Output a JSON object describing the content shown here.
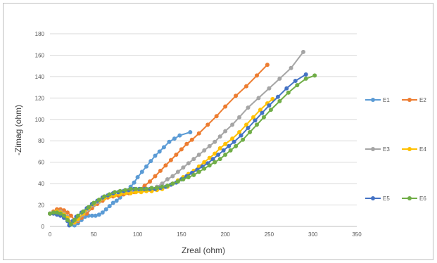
{
  "chart_data": {
    "type": "scatter",
    "title": "",
    "xlabel": "Zreal (ohm)",
    "ylabel": "-Zimag (ohm)",
    "xlim": [
      0,
      350
    ],
    "ylim": [
      0,
      180
    ],
    "xticks": [
      0,
      50,
      100,
      150,
      200,
      250,
      300,
      350
    ],
    "yticks": [
      0,
      20,
      40,
      60,
      80,
      100,
      120,
      140,
      160,
      180
    ],
    "grid": "horizontal",
    "legend": "right",
    "series": [
      {
        "name": "E1",
        "color": "#5B9BD5",
        "points": [
          [
            0,
            12
          ],
          [
            4,
            13
          ],
          [
            8,
            13
          ],
          [
            12,
            12
          ],
          [
            16,
            10
          ],
          [
            20,
            7
          ],
          [
            24,
            3
          ],
          [
            28,
            1
          ],
          [
            32,
            3
          ],
          [
            36,
            6
          ],
          [
            40,
            9
          ],
          [
            44,
            10
          ],
          [
            48,
            10
          ],
          [
            52,
            10
          ],
          [
            56,
            11
          ],
          [
            60,
            13
          ],
          [
            64,
            16
          ],
          [
            68,
            19
          ],
          [
            72,
            22
          ],
          [
            76,
            24
          ],
          [
            80,
            27
          ],
          [
            84,
            30
          ],
          [
            88,
            33
          ],
          [
            92,
            37
          ],
          [
            96,
            41
          ],
          [
            100,
            46
          ],
          [
            105,
            51
          ],
          [
            110,
            56
          ],
          [
            115,
            61
          ],
          [
            120,
            66
          ],
          [
            125,
            70
          ],
          [
            130,
            74
          ],
          [
            136,
            79
          ],
          [
            142,
            82
          ],
          [
            148,
            85
          ],
          [
            160,
            88
          ]
        ]
      },
      {
        "name": "E2",
        "color": "#ED7D31",
        "points": [
          [
            0,
            12
          ],
          [
            4,
            14
          ],
          [
            8,
            16
          ],
          [
            12,
            16
          ],
          [
            16,
            15
          ],
          [
            20,
            13
          ],
          [
            24,
            10
          ],
          [
            28,
            6
          ],
          [
            32,
            5
          ],
          [
            36,
            8
          ],
          [
            42,
            12
          ],
          [
            48,
            17
          ],
          [
            54,
            21
          ],
          [
            60,
            24
          ],
          [
            66,
            27
          ],
          [
            72,
            28
          ],
          [
            78,
            29
          ],
          [
            84,
            30
          ],
          [
            90,
            31
          ],
          [
            96,
            32
          ],
          [
            102,
            34
          ],
          [
            108,
            38
          ],
          [
            114,
            42
          ],
          [
            120,
            47
          ],
          [
            126,
            52
          ],
          [
            132,
            57
          ],
          [
            138,
            62
          ],
          [
            144,
            67
          ],
          [
            150,
            72
          ],
          [
            156,
            77
          ],
          [
            162,
            81
          ],
          [
            170,
            87
          ],
          [
            180,
            95
          ],
          [
            190,
            103
          ],
          [
            200,
            112
          ],
          [
            212,
            122
          ],
          [
            224,
            131
          ],
          [
            236,
            141
          ],
          [
            248,
            151
          ]
        ]
      },
      {
        "name": "E3",
        "color": "#A5A5A5",
        "points": [
          [
            0,
            12
          ],
          [
            4,
            13
          ],
          [
            8,
            14
          ],
          [
            12,
            14
          ],
          [
            16,
            12
          ],
          [
            20,
            9
          ],
          [
            24,
            4
          ],
          [
            28,
            3
          ],
          [
            32,
            6
          ],
          [
            38,
            11
          ],
          [
            44,
            16
          ],
          [
            50,
            20
          ],
          [
            56,
            23
          ],
          [
            62,
            26
          ],
          [
            68,
            28
          ],
          [
            74,
            29
          ],
          [
            80,
            30
          ],
          [
            86,
            31
          ],
          [
            92,
            32
          ],
          [
            98,
            33
          ],
          [
            104,
            33
          ],
          [
            110,
            34
          ],
          [
            116,
            35
          ],
          [
            122,
            37
          ],
          [
            128,
            40
          ],
          [
            134,
            44
          ],
          [
            140,
            47
          ],
          [
            146,
            51
          ],
          [
            152,
            55
          ],
          [
            158,
            59
          ],
          [
            164,
            63
          ],
          [
            170,
            67
          ],
          [
            176,
            71
          ],
          [
            182,
            75
          ],
          [
            188,
            79
          ],
          [
            194,
            84
          ],
          [
            200,
            89
          ],
          [
            208,
            95
          ],
          [
            216,
            102
          ],
          [
            226,
            111
          ],
          [
            238,
            120
          ],
          [
            250,
            129
          ],
          [
            262,
            138
          ],
          [
            275,
            148
          ],
          [
            289,
            163
          ]
        ]
      },
      {
        "name": "E4",
        "color": "#FFC000",
        "points": [
          [
            0,
            12
          ],
          [
            4,
            13
          ],
          [
            8,
            14
          ],
          [
            12,
            13
          ],
          [
            16,
            11
          ],
          [
            20,
            8
          ],
          [
            24,
            3
          ],
          [
            28,
            4
          ],
          [
            32,
            7
          ],
          [
            38,
            12
          ],
          [
            44,
            17
          ],
          [
            50,
            21
          ],
          [
            56,
            24
          ],
          [
            62,
            26
          ],
          [
            68,
            28
          ],
          [
            74,
            29
          ],
          [
            80,
            30
          ],
          [
            86,
            31
          ],
          [
            92,
            31
          ],
          [
            98,
            32
          ],
          [
            104,
            32
          ],
          [
            110,
            33
          ],
          [
            116,
            33
          ],
          [
            122,
            34
          ],
          [
            128,
            35
          ],
          [
            134,
            37
          ],
          [
            140,
            40
          ],
          [
            146,
            43
          ],
          [
            152,
            46
          ],
          [
            158,
            49
          ],
          [
            164,
            52
          ],
          [
            170,
            56
          ],
          [
            176,
            60
          ],
          [
            182,
            64
          ],
          [
            188,
            68
          ],
          [
            194,
            73
          ],
          [
            200,
            77
          ],
          [
            208,
            82
          ],
          [
            216,
            88
          ],
          [
            224,
            95
          ],
          [
            232,
            102
          ],
          [
            240,
            109
          ],
          [
            248,
            115
          ],
          [
            254,
            119
          ]
        ]
      },
      {
        "name": "E5",
        "color": "#4472C4",
        "points": [
          [
            0,
            12
          ],
          [
            4,
            12
          ],
          [
            8,
            11
          ],
          [
            12,
            10
          ],
          [
            16,
            8
          ],
          [
            20,
            5
          ],
          [
            22,
            1
          ],
          [
            26,
            5
          ],
          [
            30,
            9
          ],
          [
            36,
            13
          ],
          [
            42,
            17
          ],
          [
            48,
            21
          ],
          [
            54,
            24
          ],
          [
            60,
            27
          ],
          [
            66,
            29
          ],
          [
            72,
            31
          ],
          [
            78,
            32
          ],
          [
            84,
            33
          ],
          [
            90,
            34
          ],
          [
            96,
            35
          ],
          [
            102,
            35
          ],
          [
            108,
            35
          ],
          [
            114,
            35
          ],
          [
            120,
            35
          ],
          [
            126,
            36
          ],
          [
            132,
            37
          ],
          [
            138,
            39
          ],
          [
            144,
            41
          ],
          [
            150,
            44
          ],
          [
            156,
            47
          ],
          [
            162,
            50
          ],
          [
            168,
            53
          ],
          [
            174,
            56
          ],
          [
            180,
            59
          ],
          [
            186,
            63
          ],
          [
            192,
            67
          ],
          [
            198,
            71
          ],
          [
            204,
            75
          ],
          [
            210,
            79
          ],
          [
            218,
            85
          ],
          [
            226,
            92
          ],
          [
            234,
            99
          ],
          [
            242,
            106
          ],
          [
            250,
            113
          ],
          [
            260,
            121
          ],
          [
            270,
            129
          ],
          [
            280,
            136
          ],
          [
            292,
            142
          ]
        ]
      },
      {
        "name": "E6",
        "color": "#70AD47",
        "points": [
          [
            0,
            12
          ],
          [
            4,
            13
          ],
          [
            8,
            13
          ],
          [
            12,
            12
          ],
          [
            16,
            10
          ],
          [
            20,
            6
          ],
          [
            24,
            2
          ],
          [
            28,
            6
          ],
          [
            32,
            10
          ],
          [
            38,
            14
          ],
          [
            44,
            18
          ],
          [
            50,
            22
          ],
          [
            56,
            25
          ],
          [
            62,
            28
          ],
          [
            68,
            30
          ],
          [
            74,
            32
          ],
          [
            80,
            33
          ],
          [
            86,
            34
          ],
          [
            92,
            35
          ],
          [
            98,
            35
          ],
          [
            104,
            35
          ],
          [
            110,
            35
          ],
          [
            116,
            36
          ],
          [
            122,
            36
          ],
          [
            128,
            37
          ],
          [
            134,
            38
          ],
          [
            140,
            40
          ],
          [
            146,
            42
          ],
          [
            152,
            44
          ],
          [
            158,
            46
          ],
          [
            164,
            48
          ],
          [
            170,
            51
          ],
          [
            176,
            54
          ],
          [
            182,
            57
          ],
          [
            188,
            60
          ],
          [
            194,
            63
          ],
          [
            200,
            67
          ],
          [
            206,
            71
          ],
          [
            212,
            75
          ],
          [
            220,
            81
          ],
          [
            228,
            88
          ],
          [
            236,
            95
          ],
          [
            244,
            102
          ],
          [
            252,
            109
          ],
          [
            262,
            117
          ],
          [
            272,
            125
          ],
          [
            282,
            132
          ],
          [
            292,
            138
          ],
          [
            302,
            141
          ]
        ]
      }
    ]
  }
}
